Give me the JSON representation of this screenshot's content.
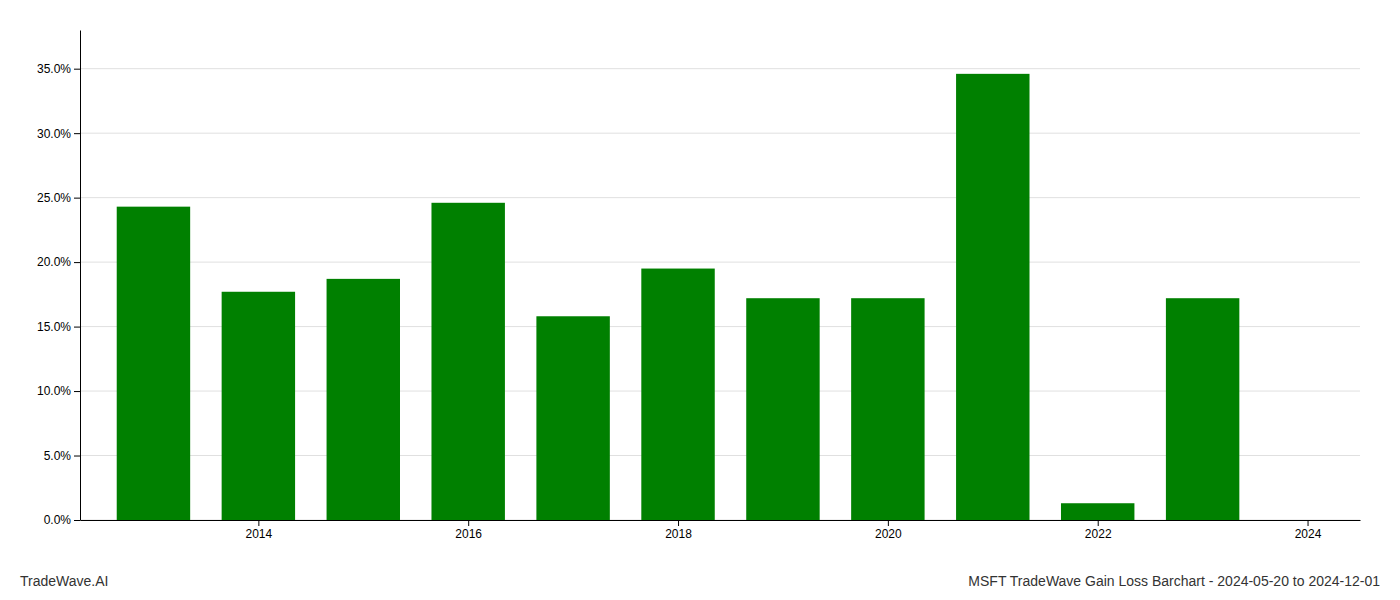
{
  "chart_data": {
    "type": "bar",
    "title": "MSFT TradeWave Gain Loss Barchart - 2024-05-20 to 2024-12-01",
    "annotations": [
      "TradeWave.AI"
    ],
    "x": [
      2013,
      2014,
      2015,
      2016,
      2017,
      2018,
      2019,
      2020,
      2021,
      2022,
      2023
    ],
    "values": [
      0.243,
      0.177,
      0.187,
      0.246,
      0.158,
      0.195,
      0.172,
      0.172,
      0.346,
      0.013,
      0.172
    ],
    "color": "#008000",
    "xlim": [
      2012.3,
      2024.5
    ],
    "xticks": [
      2014,
      2016,
      2018,
      2020,
      2022,
      2024
    ],
    "ylim": [
      0,
      0.38
    ],
    "yticks": [
      {
        "value": 0,
        "label": "0.0%"
      },
      {
        "value": 0.05,
        "label": "5.0%"
      },
      {
        "value": 0.1,
        "label": "10.0%"
      },
      {
        "value": 0.15,
        "label": "15.0%"
      },
      {
        "value": 0.2,
        "label": "20.0%"
      },
      {
        "value": 0.25,
        "label": "25.0%"
      },
      {
        "value": 0.3,
        "label": "30.0%"
      },
      {
        "value": 0.35,
        "label": "35.0%"
      }
    ],
    "grid": true
  }
}
